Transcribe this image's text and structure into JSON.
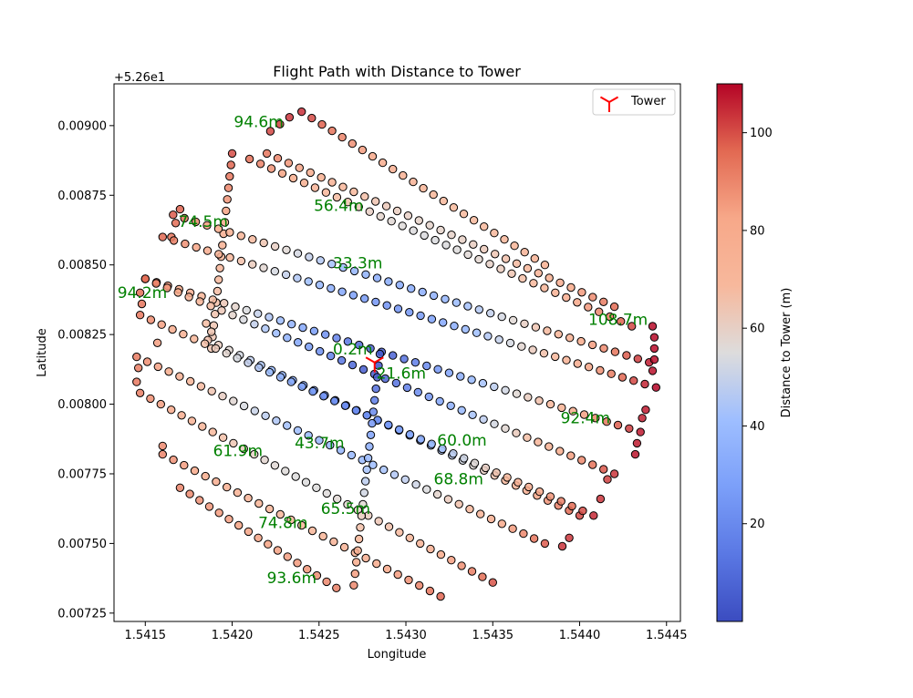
{
  "chart_data": {
    "type": "scatter",
    "title": "Flight Path with Distance to Tower",
    "xlabel": "Longitude",
    "ylabel": "Latitude",
    "y_offset_label": "+5.26e1",
    "xlim": [
      1.54132,
      1.54458
    ],
    "ylim": [
      0.00722,
      0.00915
    ],
    "x_ticks": [
      {
        "value": 1.5415,
        "label": "1.5415"
      },
      {
        "value": 1.542,
        "label": "1.5420"
      },
      {
        "value": 1.5425,
        "label": "1.5425"
      },
      {
        "value": 1.543,
        "label": "1.5430"
      },
      {
        "value": 1.5435,
        "label": "1.5435"
      },
      {
        "value": 1.544,
        "label": "1.5440"
      },
      {
        "value": 1.5445,
        "label": "1.5445"
      }
    ],
    "y_ticks": [
      {
        "value": 0.00725,
        "label": "0.00725"
      },
      {
        "value": 0.0075,
        "label": "0.00750"
      },
      {
        "value": 0.00775,
        "label": "0.00775"
      },
      {
        "value": 0.008,
        "label": "0.00800"
      },
      {
        "value": 0.00825,
        "label": "0.00825"
      },
      {
        "value": 0.0085,
        "label": "0.00850"
      },
      {
        "value": 0.00875,
        "label": "0.00875"
      },
      {
        "value": 0.009,
        "label": "0.00900"
      }
    ],
    "grid": false,
    "legend": {
      "placement": "top-right",
      "entries": [
        {
          "label": "Tower",
          "marker": "tri-down",
          "color": "#ff0000"
        }
      ]
    },
    "tower": {
      "x": 1.54282,
      "y": 0.00815
    },
    "colorbar": {
      "label": "Distance to Tower (m)",
      "range": [
        0,
        110
      ],
      "colormap": "coolwarm",
      "ticks": [
        {
          "value": 20,
          "label": "20"
        },
        {
          "value": 40,
          "label": "40"
        },
        {
          "value": 60,
          "label": "60"
        },
        {
          "value": 80,
          "label": "80"
        },
        {
          "value": 100,
          "label": "100"
        }
      ]
    },
    "passes": [
      {
        "x1": 1.5424,
        "y1": 0.00905,
        "x2": 1.5438,
        "y2": 0.0085
      },
      {
        "x1": 1.54233,
        "y1": 0.00903,
        "x2": 1.54222,
        "y2": 0.00898
      },
      {
        "x1": 1.5422,
        "y1": 0.0089,
        "x2": 1.5442,
        "y2": 0.00835
      },
      {
        "x1": 1.54188,
        "y1": 0.0082,
        "x2": 1.542,
        "y2": 0.0089
      },
      {
        "x1": 1.54186,
        "y1": 0.00823,
        "x2": 1.544,
        "y2": 0.0076
      },
      {
        "x1": 1.5421,
        "y1": 0.00888,
        "x2": 1.5443,
        "y2": 0.00828
      },
      {
        "x1": 1.54165,
        "y1": 0.0086,
        "x2": 1.5417,
        "y2": 0.0087
      },
      {
        "x1": 1.54166,
        "y1": 0.00868,
        "x2": 1.5444,
        "y2": 0.00815
      },
      {
        "x1": 1.5416,
        "y1": 0.0086,
        "x2": 1.54444,
        "y2": 0.00806
      },
      {
        "x1": 1.5415,
        "y1": 0.00845,
        "x2": 1.54435,
        "y2": 0.0079
      },
      {
        "x1": 1.5415,
        "y1": 0.00845,
        "x2": 1.5442,
        "y2": 0.00775
      },
      {
        "x1": 1.54147,
        "y1": 0.00832,
        "x2": 1.54408,
        "y2": 0.0076
      },
      {
        "x1": 1.54145,
        "y1": 0.00817,
        "x2": 1.5438,
        "y2": 0.0075
      },
      {
        "x1": 1.54147,
        "y1": 0.00804,
        "x2": 1.5435,
        "y2": 0.00736
      },
      {
        "x1": 1.5416,
        "y1": 0.00782,
        "x2": 1.5432,
        "y2": 0.00731
      },
      {
        "x1": 1.5417,
        "y1": 0.0077,
        "x2": 1.5426,
        "y2": 0.00734
      },
      {
        "x1": 1.54285,
        "y1": 0.00818,
        "x2": 1.5427,
        "y2": 0.00735
      }
    ],
    "turns": [
      {
        "x": 1.54442,
        "y": 0.00828
      },
      {
        "x": 1.54443,
        "y": 0.00824
      },
      {
        "x": 1.54443,
        "y": 0.0082
      },
      {
        "x": 1.54443,
        "y": 0.00816
      },
      {
        "x": 1.54442,
        "y": 0.00812
      },
      {
        "x": 1.54438,
        "y": 0.00798
      },
      {
        "x": 1.54436,
        "y": 0.00795
      },
      {
        "x": 1.54433,
        "y": 0.00786
      },
      {
        "x": 1.54432,
        "y": 0.00782
      },
      {
        "x": 1.54416,
        "y": 0.00773
      },
      {
        "x": 1.54412,
        "y": 0.00766
      },
      {
        "x": 1.54394,
        "y": 0.00752
      },
      {
        "x": 1.5439,
        "y": 0.00749
      },
      {
        "x": 1.54147,
        "y": 0.0084
      },
      {
        "x": 1.54148,
        "y": 0.00836
      },
      {
        "x": 1.54146,
        "y": 0.00813
      },
      {
        "x": 1.54145,
        "y": 0.00808
      },
      {
        "x": 1.54157,
        "y": 0.00822
      },
      {
        "x": 1.5416,
        "y": 0.00785
      },
      {
        "x": 1.54188,
        "y": 0.00826
      },
      {
        "x": 1.54185,
        "y": 0.00829
      }
    ],
    "annotations": [
      {
        "text": "94.6m",
        "x": 1.54201,
        "y": 0.008995
      },
      {
        "text": "56.4m",
        "x": 1.54247,
        "y": 0.008693
      },
      {
        "text": "74.5m",
        "x": 1.54169,
        "y": 0.008637
      },
      {
        "text": "33.3m",
        "x": 1.54258,
        "y": 0.008487
      },
      {
        "text": "94.2m",
        "x": 1.54134,
        "y": 0.008381
      },
      {
        "text": "108.7m",
        "x": 1.54405,
        "y": 0.008284
      },
      {
        "text": "0.2m",
        "x": 1.54258,
        "y": 0.008179
      },
      {
        "text": "21.6m",
        "x": 1.54283,
        "y": 0.008091
      },
      {
        "text": "92.4m",
        "x": 1.54389,
        "y": 0.007931
      },
      {
        "text": "60.0m",
        "x": 1.54318,
        "y": 0.007851
      },
      {
        "text": "43.7m",
        "x": 1.54236,
        "y": 0.007841
      },
      {
        "text": "61.9m",
        "x": 1.54189,
        "y": 0.007814
      },
      {
        "text": "68.8m",
        "x": 1.54316,
        "y": 0.007713
      },
      {
        "text": "65.5m",
        "x": 1.54251,
        "y": 0.007606
      },
      {
        "text": "74.8m",
        "x": 1.54215,
        "y": 0.007555
      },
      {
        "text": "93.6m",
        "x": 1.5422,
        "y": 0.007357
      }
    ]
  }
}
